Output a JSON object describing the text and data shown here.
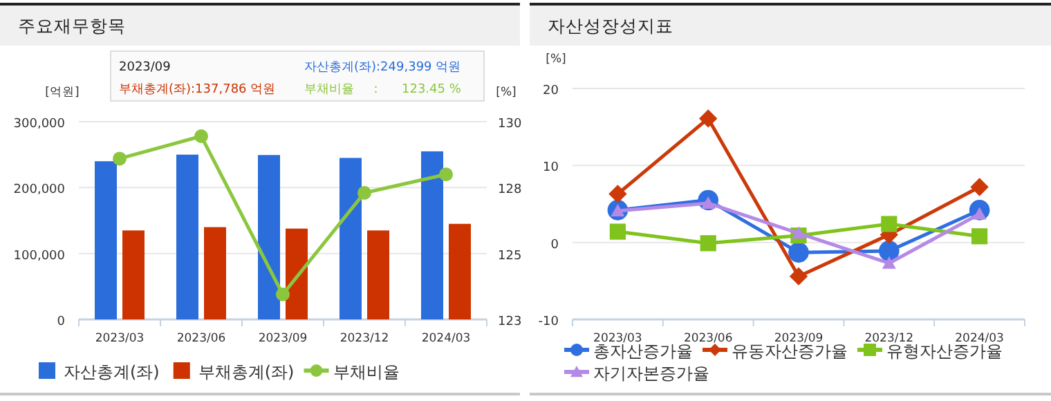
{
  "chart_data": [
    {
      "type": "bar",
      "title": "주요재무항목",
      "categories": [
        "2023/03",
        "2023/06",
        "2023/09",
        "2023/12",
        "2024/03"
      ],
      "ylabel": "[억원]",
      "y2label": "[%]",
      "ylim": [
        0,
        300000
      ],
      "yticks": [
        {
          "value": 0,
          "label": "0"
        },
        {
          "value": 100000,
          "label": "100,000"
        },
        {
          "value": 200000,
          "label": "200,000"
        },
        {
          "value": 300000,
          "label": "300,000"
        }
      ],
      "y2lim": [
        122.5,
        130
      ],
      "y2ticks": [
        {
          "value": 122.5,
          "label": "123"
        },
        {
          "value": 125,
          "label": "125"
        },
        {
          "value": 127.5,
          "label": "128"
        },
        {
          "value": 130,
          "label": "130"
        }
      ],
      "grid": "y",
      "legend": "bottom",
      "series": [
        {
          "name": "자산총계(좌)",
          "color": "#2a6ddb",
          "values": [
            240000,
            250000,
            249399,
            245000,
            255000
          ]
        },
        {
          "name": "부채총계(좌)",
          "color": "#cc3300",
          "values": [
            135000,
            140000,
            137786,
            135000,
            145000
          ]
        },
        {
          "name": "부채비율",
          "type": "line",
          "axis": "y2",
          "marker": "circle",
          "color": "#8cc63f",
          "values": [
            128.6,
            129.45,
            123.45,
            127.3,
            128.0
          ]
        }
      ],
      "annotations": [
        "2023/09",
        "자산총계(좌):249,399 억원",
        "부채총계(좌):137,786 억원",
        "부채비율     :      123.45 %"
      ]
    },
    {
      "type": "line",
      "title": "자산성장성지표",
      "categories": [
        "2023/03",
        "2023/06",
        "2023/09",
        "2023/12",
        "2024/03"
      ],
      "ylabel": "[%]",
      "ylim": [
        -10,
        20
      ],
      "yticks": [
        -10,
        0,
        10,
        20
      ],
      "grid": "y",
      "legend": "bottom",
      "series": [
        {
          "name": "총자산증가율",
          "marker": "circle",
          "color": "#2f6fdf",
          "values": [
            4.2,
            5.5,
            -1.3,
            -1.1,
            4.2
          ]
        },
        {
          "name": "유동자산증가율",
          "marker": "diamond",
          "color": "#cc3a0a",
          "values": [
            6.3,
            16.1,
            -4.4,
            1.0,
            7.2
          ]
        },
        {
          "name": "유형자산증가율",
          "marker": "square",
          "color": "#80c31c",
          "values": [
            1.4,
            -0.1,
            0.9,
            2.4,
            0.8
          ]
        },
        {
          "name": "자기자본증가율",
          "marker": "triangle",
          "color": "#b58ae6",
          "values": [
            4.1,
            5.1,
            1.2,
            -2.7,
            3.7
          ]
        }
      ]
    }
  ]
}
